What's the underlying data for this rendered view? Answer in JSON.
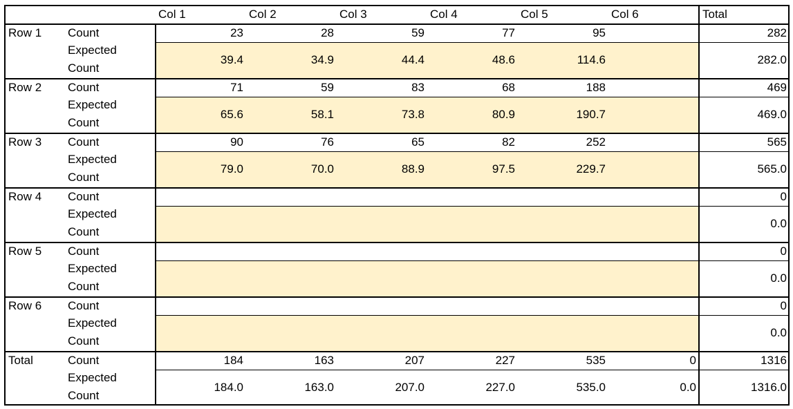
{
  "table": {
    "col_headers": [
      "Col 1",
      "Col 2",
      "Col 3",
      "Col 4",
      "Col 5",
      "Col 6"
    ],
    "total_header": "Total",
    "count_label": "Count",
    "expected_label_line1": "Expected",
    "expected_label_line2": "Count",
    "band_color": "#fff2cc",
    "rows": [
      {
        "label": "Row 1",
        "count": [
          "23",
          "28",
          "59",
          "77",
          "95",
          ""
        ],
        "count_total": "282",
        "expected": [
          "39.4",
          "34.9",
          "44.4",
          "48.6",
          "114.6",
          ""
        ],
        "expected_total": "282.0"
      },
      {
        "label": "Row 2",
        "count": [
          "71",
          "59",
          "83",
          "68",
          "188",
          ""
        ],
        "count_total": "469",
        "expected": [
          "65.6",
          "58.1",
          "73.8",
          "80.9",
          "190.7",
          ""
        ],
        "expected_total": "469.0"
      },
      {
        "label": "Row 3",
        "count": [
          "90",
          "76",
          "65",
          "82",
          "252",
          ""
        ],
        "count_total": "565",
        "expected": [
          "79.0",
          "70.0",
          "88.9",
          "97.5",
          "229.7",
          ""
        ],
        "expected_total": "565.0"
      },
      {
        "label": "Row 4",
        "count": [
          "",
          "",
          "",
          "",
          "",
          ""
        ],
        "count_total": "0",
        "expected": [
          "",
          "",
          "",
          "",
          "",
          ""
        ],
        "expected_total": "0.0"
      },
      {
        "label": "Row 5",
        "count": [
          "",
          "",
          "",
          "",
          "",
          ""
        ],
        "count_total": "0",
        "expected": [
          "",
          "",
          "",
          "",
          "",
          ""
        ],
        "expected_total": "0.0"
      },
      {
        "label": "Row 6",
        "count": [
          "",
          "",
          "",
          "",
          "",
          ""
        ],
        "count_total": "0",
        "expected": [
          "",
          "",
          "",
          "",
          "",
          ""
        ],
        "expected_total": "0.0"
      }
    ],
    "total_row": {
      "label": "Total",
      "count": [
        "184",
        "163",
        "207",
        "227",
        "535",
        "0"
      ],
      "count_total": "1316",
      "expected": [
        "184.0",
        "163.0",
        "207.0",
        "227.0",
        "535.0",
        "0.0"
      ],
      "expected_total": "1316.0"
    }
  }
}
